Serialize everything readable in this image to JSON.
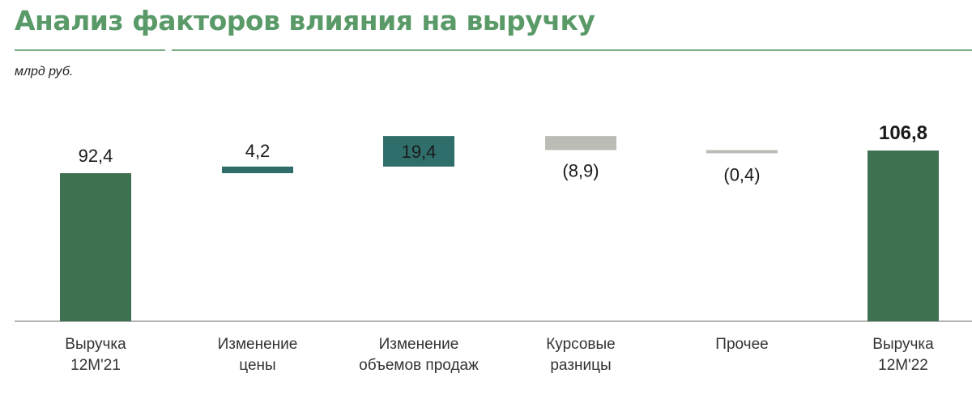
{
  "title": "Анализ факторов влияния на выручку",
  "unit": "млрд руб.",
  "colors": {
    "title": "#5a9a68",
    "total": "#3d7150",
    "increase": "#2f6e6b",
    "decrease": "#bcbcb6"
  },
  "chart_data": {
    "type": "waterfall",
    "categories": [
      [
        "Выручка",
        "12М'21"
      ],
      [
        "Изменение",
        "цены"
      ],
      [
        "Изменение",
        "объемов продаж"
      ],
      [
        "Курсовые",
        "разницы"
      ],
      [
        "Прочее"
      ],
      [
        "Выручка",
        "12М'22"
      ]
    ],
    "values": [
      92.4,
      4.2,
      19.4,
      -8.9,
      -0.4,
      106.8
    ],
    "value_labels": [
      "92,4",
      "4,2",
      "19,4",
      "(8,9)",
      "(0,4)",
      "106,8"
    ],
    "kinds": [
      "total",
      "increase",
      "increase",
      "decrease",
      "decrease",
      "total"
    ],
    "ylabel": "млрд руб."
  }
}
